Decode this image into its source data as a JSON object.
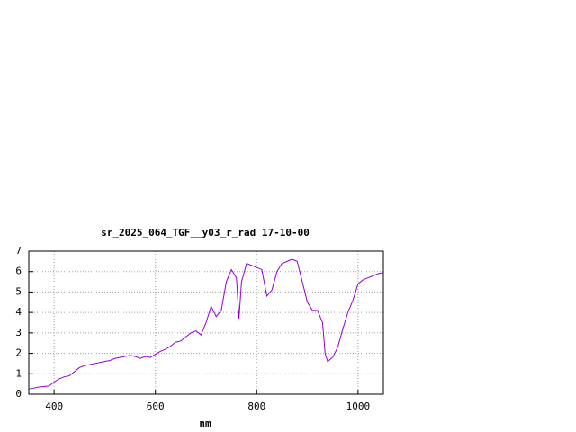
{
  "chart_data": {
    "type": "line",
    "title": "sr_2025_064_TGF__y03_r_rad 17-10-00",
    "xlabel": "nm",
    "x": [
      350,
      360,
      370,
      380,
      390,
      400,
      410,
      420,
      430,
      440,
      450,
      460,
      470,
      480,
      490,
      500,
      510,
      520,
      530,
      540,
      550,
      560,
      570,
      580,
      590,
      600,
      610,
      620,
      630,
      640,
      650,
      660,
      670,
      680,
      690,
      700,
      710,
      720,
      730,
      740,
      750,
      760,
      765,
      770,
      780,
      790,
      800,
      810,
      820,
      830,
      840,
      850,
      860,
      870,
      880,
      890,
      900,
      910,
      920,
      930,
      935,
      940,
      950,
      960,
      970,
      980,
      990,
      1000,
      1010,
      1020,
      1030,
      1040,
      1050
    ],
    "series": [
      {
        "name": "sr_2025_064_TGF__y03_r_rad",
        "color": "#9400d3",
        "values": [
          0.25,
          0.3,
          0.35,
          0.38,
          0.4,
          0.6,
          0.75,
          0.85,
          0.9,
          1.1,
          1.3,
          1.4,
          1.45,
          1.5,
          1.55,
          1.6,
          1.65,
          1.75,
          1.8,
          1.85,
          1.9,
          1.85,
          1.75,
          1.85,
          1.8,
          1.95,
          2.1,
          2.2,
          2.35,
          2.55,
          2.6,
          2.8,
          3.0,
          3.1,
          2.9,
          3.5,
          4.3,
          3.8,
          4.1,
          5.5,
          6.1,
          5.7,
          3.7,
          5.5,
          6.4,
          6.3,
          6.2,
          6.1,
          4.8,
          5.1,
          6.0,
          6.4,
          6.5,
          6.6,
          6.5,
          5.5,
          4.5,
          4.1,
          4.1,
          3.5,
          2.0,
          1.6,
          1.8,
          2.3,
          3.2,
          4.0,
          4.6,
          5.4,
          5.6,
          5.7,
          5.8,
          5.9,
          5.95
        ]
      }
    ],
    "xlim": [
      350,
      1050
    ],
    "xticks": [
      400,
      600,
      800,
      1000
    ],
    "ylim": [
      0,
      7
    ],
    "yticks": [
      0,
      1,
      2,
      3,
      4,
      5,
      6,
      7
    ],
    "grid": true
  }
}
